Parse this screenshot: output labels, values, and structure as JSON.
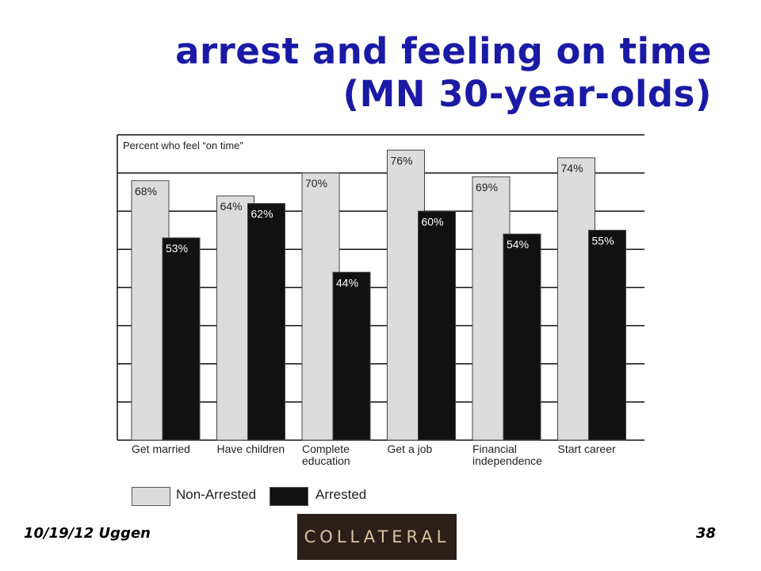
{
  "slide": {
    "title_line1": "arrest and feeling on time",
    "title_line2": "(MN 30-year-olds)",
    "footer_left": "10/19/12 Uggen",
    "footer_right": "38",
    "logo_text": "COLLATERAL"
  },
  "chart_data": {
    "type": "bar",
    "ylabel": "Percent who feel “on time”",
    "categories": [
      [
        "Get married"
      ],
      [
        "Have children"
      ],
      [
        "Complete",
        "education"
      ],
      [
        "Get a job"
      ],
      [
        "Financial",
        "independence"
      ],
      [
        "Start career"
      ]
    ],
    "series": [
      {
        "name": "Non-Arrested",
        "values": [
          68,
          64,
          70,
          76,
          69,
          74
        ],
        "labels": [
          "68%",
          "64%",
          "70%",
          "76%",
          "69%",
          "74%"
        ],
        "color": "#dcdcdc"
      },
      {
        "name": "Arrested",
        "values": [
          53,
          62,
          44,
          60,
          54,
          55
        ],
        "labels": [
          "53%",
          "62%",
          "44%",
          "60%",
          "54%",
          "55%"
        ],
        "color": "#111111"
      }
    ],
    "ylim": [
      0,
      80
    ],
    "grid": true,
    "legend_position": "bottom-left"
  }
}
